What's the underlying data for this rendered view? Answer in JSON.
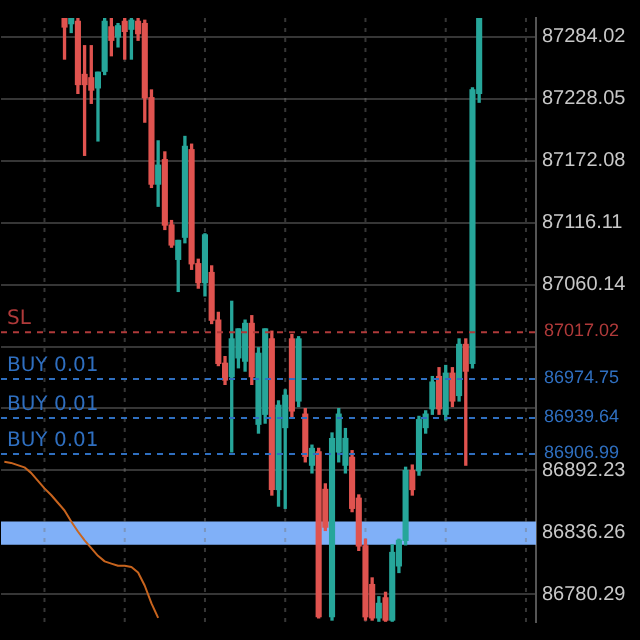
{
  "chart_data": {
    "type": "candlestick",
    "categories": [
      null,
      null,
      null,
      null,
      null,
      null,
      null,
      null,
      null,
      null,
      null,
      null,
      null,
      null,
      null,
      null,
      null,
      null,
      null,
      null,
      null,
      null,
      null,
      null,
      null,
      null,
      null,
      null,
      null,
      null,
      null,
      null,
      null,
      null,
      null,
      null,
      null,
      null,
      null,
      null,
      null,
      null,
      null,
      null,
      null,
      null,
      null,
      null,
      null,
      null,
      null,
      null,
      null,
      null,
      null,
      null,
      null,
      null,
      null,
      null,
      null,
      null,
      null,
      null,
      null,
      null,
      null,
      null,
      null,
      null,
      null,
      null,
      null,
      null,
      null,
      null,
      null,
      null,
      null,
      null
    ],
    "series": [
      {
        "type": "candlestick",
        "ohlc": [
          null,
          null,
          null,
          null,
          null,
          null,
          null,
          null,
          null,
          [
            87301,
            87301,
            87264,
            87293
          ],
          [
            87296,
            87301,
            87288,
            87301
          ],
          [
            87298,
            87301,
            87233,
            87241
          ],
          [
            87250,
            87276,
            87177,
            87241
          ],
          [
            87247,
            87276,
            87224,
            87236
          ],
          [
            87238,
            87252,
            87190,
            87252
          ],
          [
            87253,
            87301,
            87250,
            87298
          ],
          [
            87293,
            87301,
            87267,
            87281
          ],
          [
            87284,
            87296,
            87275,
            87294
          ],
          [
            87298,
            87301,
            87264,
            87289
          ],
          [
            87291,
            87301,
            87264,
            87299
          ],
          [
            87298,
            87301,
            87281,
            87287
          ],
          [
            87296,
            87299,
            87207,
            87229
          ],
          [
            87229,
            87236,
            87148,
            87151
          ],
          [
            87151,
            87190,
            87131,
            87168
          ],
          [
            87173,
            87180,
            87110,
            87114
          ],
          [
            87114,
            87118,
            87094,
            87096
          ],
          [
            87083,
            87100,
            87054,
            87100
          ],
          [
            87103,
            87194,
            87098,
            87185
          ],
          [
            87182,
            87187,
            87074,
            87079
          ],
          [
            87079,
            87083,
            87057,
            87062
          ],
          [
            87062,
            87106,
            87050,
            87105
          ],
          [
            87071,
            87077,
            87025,
            87028
          ],
          [
            87028,
            87035,
            86987,
            86989
          ],
          [
            86989,
            86995,
            86970,
            86974
          ],
          [
            86977,
            87045,
            86909,
            87011
          ],
          [
            86994,
            87020,
            86985,
            87020
          ],
          [
            86991,
            87028,
            86982,
            87025
          ],
          [
            87025,
            87032,
            86970,
            86977
          ],
          [
            86934,
            87003,
            86926,
            86998
          ],
          [
            86943,
            87020,
            86935,
            87020
          ],
          [
            87011,
            87018,
            86870,
            86875
          ],
          [
            86875,
            86955,
            86860,
            86951
          ],
          [
            86931,
            86965,
            86858,
            86960
          ],
          [
            87011,
            87015,
            86940,
            86946
          ],
          [
            86955,
            87013,
            86950,
            87011
          ],
          [
            86943,
            86948,
            86900,
            86905
          ],
          [
            86897,
            86915,
            86890,
            86912
          ],
          [
            86909,
            86912,
            86759,
            86760
          ],
          [
            86875,
            86880,
            86838,
            86841
          ],
          [
            86760,
            86926,
            86757,
            86921
          ],
          [
            86909,
            86948,
            86900,
            86943
          ],
          [
            86897,
            86930,
            86890,
            86921
          ],
          [
            86904,
            86910,
            86855,
            86858
          ],
          [
            86867,
            86870,
            86820,
            86824
          ],
          [
            86824,
            86830,
            86757,
            86760
          ],
          [
            86789,
            86795,
            86757,
            86759
          ],
          [
            86759,
            86778,
            86756,
            86772
          ],
          [
            86777,
            86782,
            86756,
            86757
          ],
          [
            86757,
            86825,
            86756,
            86818
          ],
          [
            86806,
            86830,
            86800,
            86829
          ],
          [
            86829,
            86895,
            86825,
            86892
          ],
          [
            86892,
            86897,
            86870,
            86875
          ],
          [
            86892,
            86941,
            86888,
            86938
          ],
          [
            86931,
            86946,
            86926,
            86943
          ],
          [
            86948,
            86977,
            86943,
            86972
          ],
          [
            86977,
            86985,
            86943,
            86948
          ],
          [
            86943,
            86987,
            86938,
            86980
          ],
          [
            86980,
            86985,
            86950,
            86955
          ],
          [
            86960,
            87011,
            86955,
            87006
          ],
          [
            87006,
            87011,
            86897,
            86982
          ],
          [
            86989,
            87238,
            86985,
            87236
          ],
          [
            87233,
            87301,
            87225,
            87301
          ],
          null,
          null,
          null,
          null,
          null,
          null,
          null,
          null
        ],
        "colors": [
          null,
          null,
          null,
          null,
          null,
          null,
          null,
          null,
          null,
          "#e0534f",
          "#26a69a",
          "#e0534f",
          "#e0534f",
          "#e0534f",
          "#26a69a",
          "#26a69a",
          "#e0534f",
          "#26a69a",
          "#e0534f",
          "#26a69a",
          "#e0534f",
          "#e0534f",
          "#e0534f",
          "#26a69a",
          "#e0534f",
          "#e0534f",
          "#26a69a",
          "#26a69a",
          "#e0534f",
          "#e0534f",
          "#26a69a",
          "#e0534f",
          "#e0534f",
          "#e0534f",
          "#26a69a",
          "#26a69a",
          "#26a69a",
          "#e0534f",
          "#26a69a",
          "#26a69a",
          "#e0534f",
          "#26a69a",
          "#26a69a",
          "#e0534f",
          "#26a69a",
          "#e0534f",
          "#26a69a",
          "#e0534f",
          "#e0534f",
          "#26a69a",
          "#26a69a",
          "#26a69a",
          "#e0534f",
          "#e0534f",
          "#e0534f",
          "#e0534f",
          "#26a69a",
          "#e0534f",
          "#26a69a",
          "#26a69a",
          "#26a69a",
          "#e0534f",
          "#26a69a",
          "#26a69a",
          "#26a69a",
          "#e0534f",
          "#26a69a",
          "#e0534f",
          "#26a69a",
          "#e0534f",
          "#26a69a",
          "#26a69a",
          null,
          null,
          null,
          null,
          null,
          null,
          null,
          null
        ]
      },
      {
        "type": "line",
        "color": "#c8641e",
        "values": [
          86900,
          86899,
          86897,
          86895,
          86890,
          86883,
          86876,
          86870,
          86863,
          86856,
          86846,
          86837,
          86829,
          86822,
          86815,
          86810,
          86808,
          86806,
          86806,
          86805,
          86800,
          86788,
          86772,
          86759,
          null,
          null,
          null,
          null,
          null,
          null,
          null,
          null,
          null,
          null,
          null,
          null,
          null,
          null,
          null,
          null,
          null,
          null,
          null,
          null,
          null,
          null,
          null,
          null,
          null,
          null,
          null,
          null,
          null,
          null,
          null,
          null,
          null,
          null,
          null,
          null,
          null,
          null,
          null,
          null,
          null,
          null,
          null,
          null,
          null,
          null,
          null,
          null,
          null,
          null,
          null,
          null,
          null,
          null,
          null,
          null
        ]
      }
    ],
    "ylim": [
      86755.22,
      87301.08
    ],
    "yticks": [
      87284.02,
      87228.05,
      87172.08,
      87116.11,
      87060.14,
      {
        "value": 87004.17,
        "label": null
      },
      {
        "value": 86948.2,
        "label": null
      },
      86892.23,
      86836.26,
      86780.29
    ],
    "ref_lines": [
      {
        "axis": "y",
        "value": 87017.02,
        "label": "SL",
        "color": "#b03a3a",
        "line_style": "dashed"
      },
      {
        "axis": "y",
        "value": 86974.75,
        "label": "BUY 0.01",
        "color": "#2f6fc0",
        "line_style": "dashed"
      },
      {
        "axis": "y",
        "value": 86939.64,
        "label": "BUY 0.01",
        "color": "#2f6fc0",
        "line_style": "dashed"
      },
      {
        "axis": "y",
        "value": 86906.99,
        "label": "BUY 0.01",
        "color": "#2f6fc0",
        "line_style": "dashed"
      }
    ],
    "annotations": [
      "87017.02",
      "86974.75",
      "86939.64",
      "86906.99"
    ],
    "bands": [
      {
        "axis": "y",
        "from": 86825,
        "to": 86846,
        "color": "#80b0f8"
      }
    ],
    "grid": true,
    "legend": false,
    "tick_labels": "y"
  }
}
